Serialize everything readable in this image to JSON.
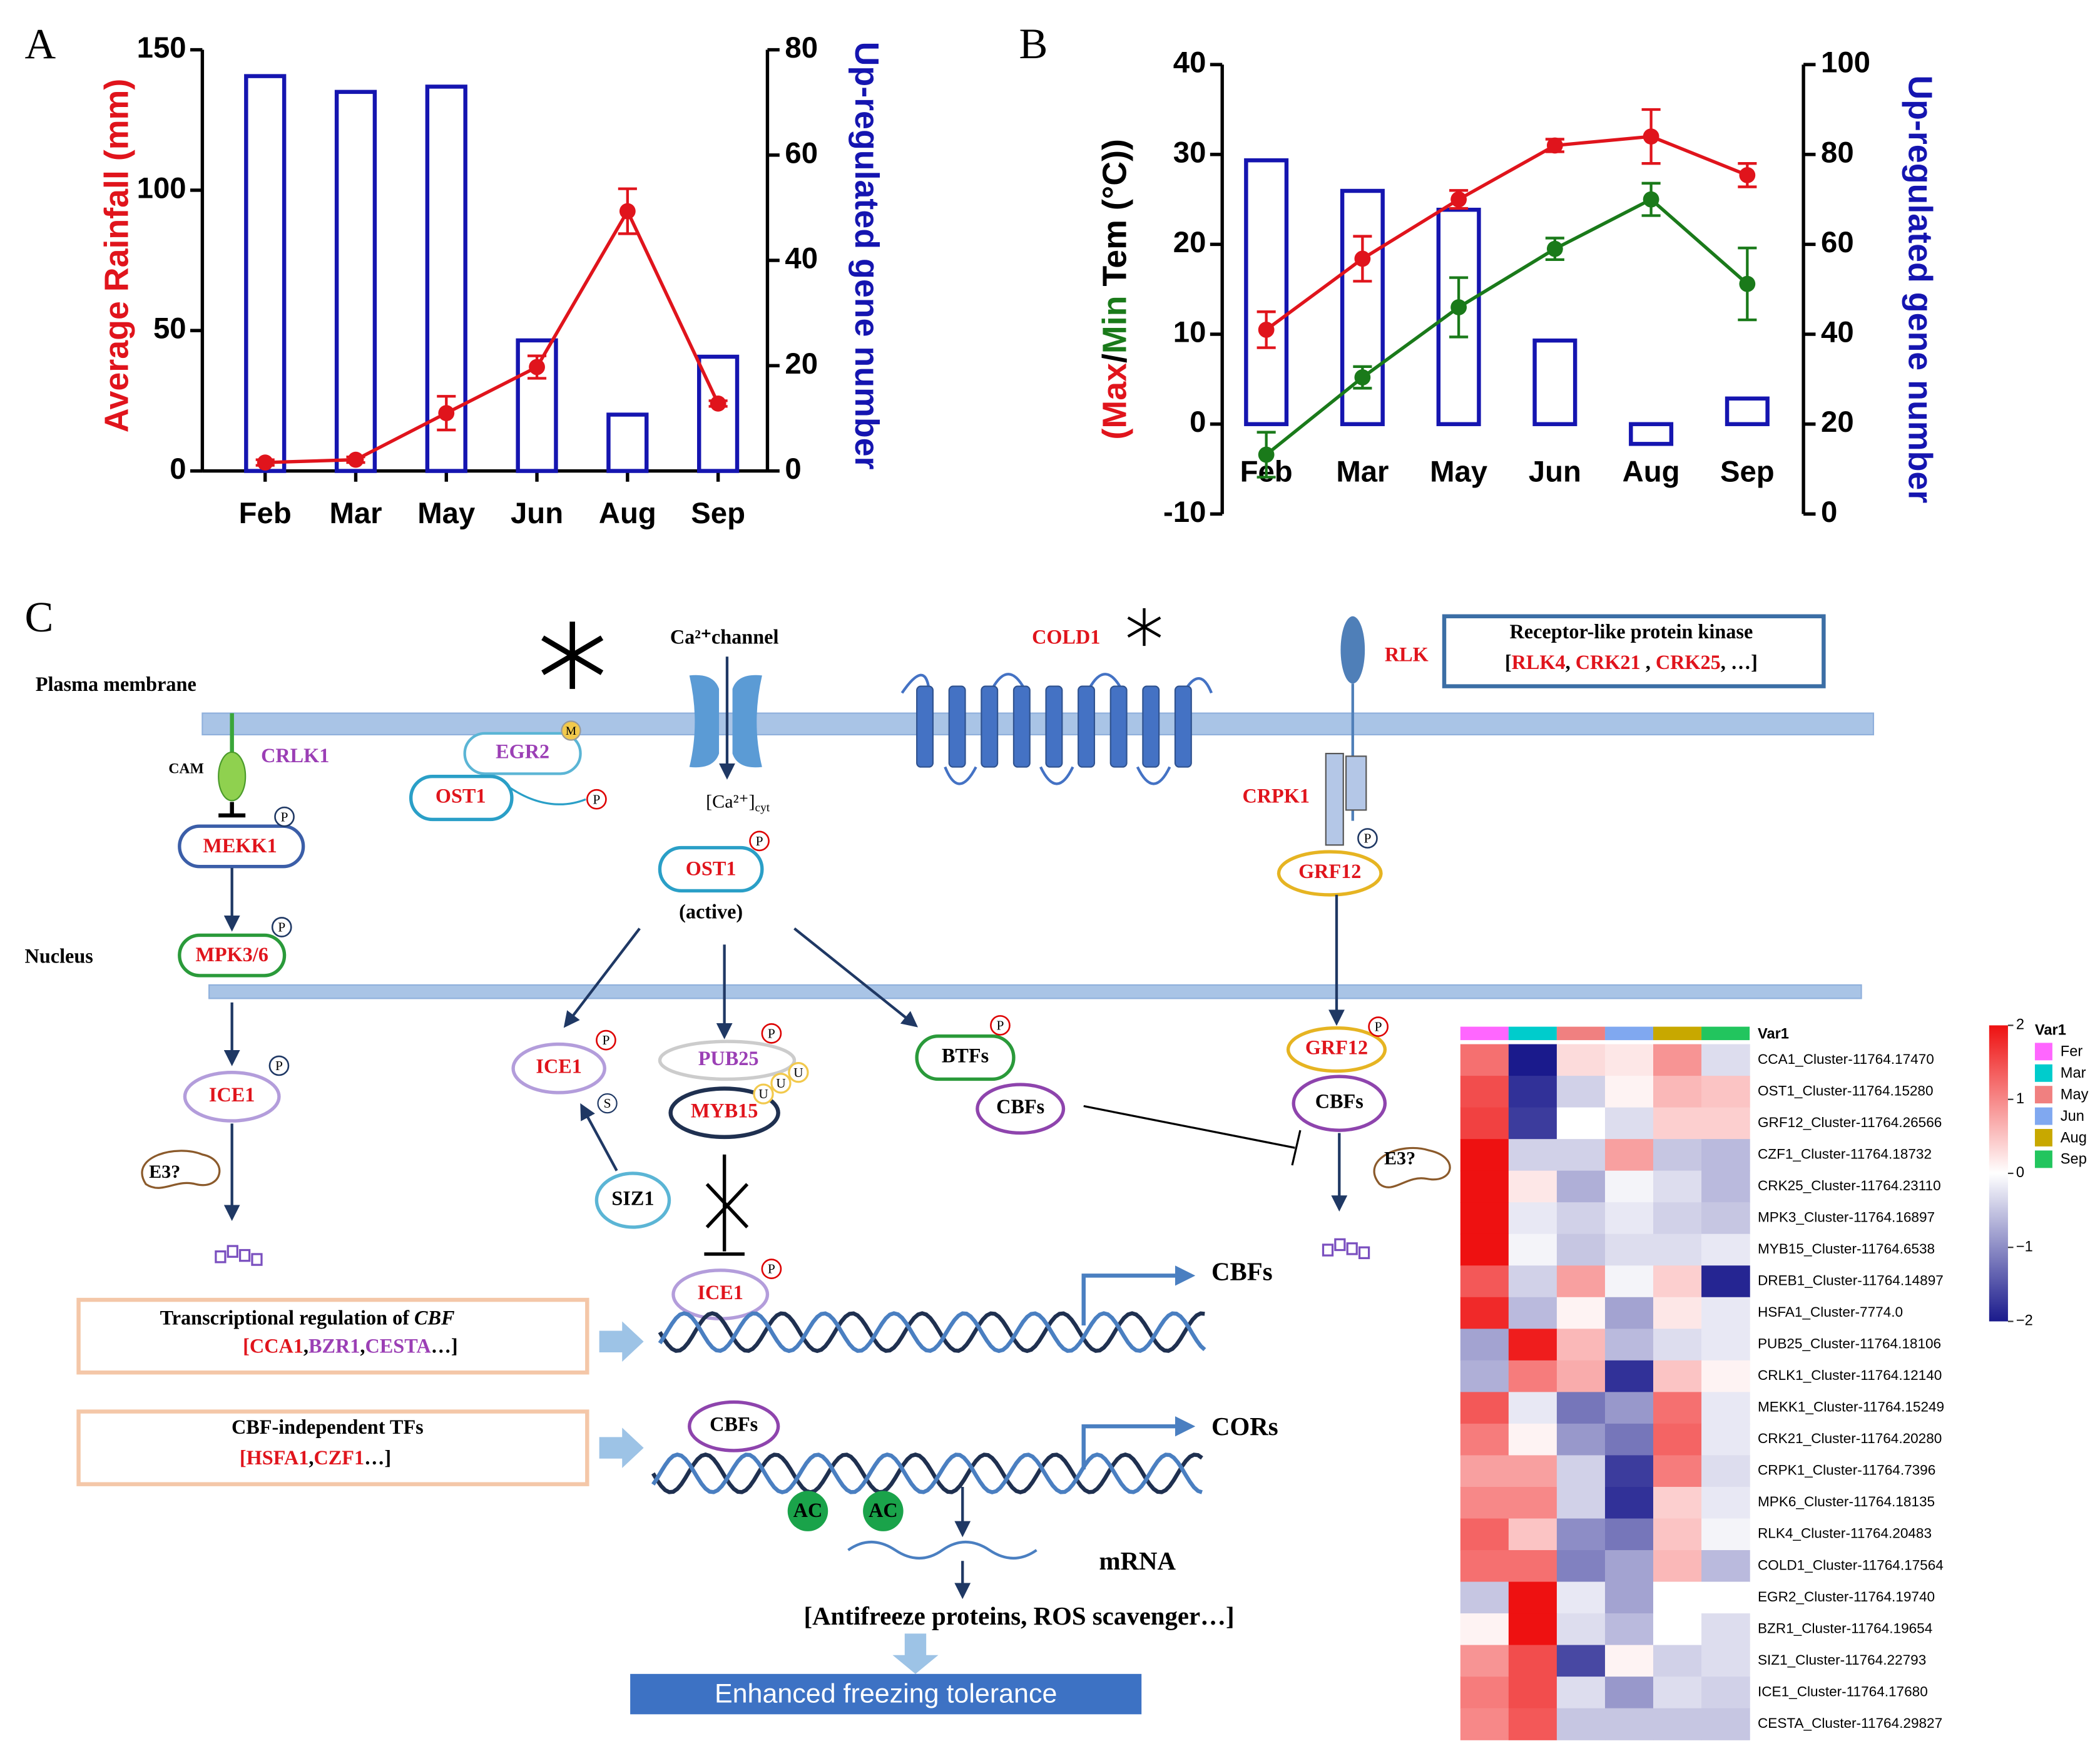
{
  "chart_data": [
    {
      "type": "combo",
      "panel": "A",
      "categories": [
        "Feb",
        "Mar",
        "May",
        "Jun",
        "Aug",
        "Sep"
      ],
      "ylabel": "Average Rainfall (mm)",
      "ylabel_color": "#e0141c",
      "y2label": "Up-regulated gene number",
      "y2label_color": "#1515b0",
      "ylim": [
        0,
        150
      ],
      "yticks": [
        0,
        50,
        100,
        150
      ],
      "y2lim": [
        0,
        80
      ],
      "y2ticks": [
        0,
        20,
        40,
        60,
        80
      ],
      "series": [
        {
          "kind": "bar",
          "axis": "y2",
          "color": "#1515b0",
          "values": [
            75,
            72,
            73,
            24.8,
            10.7,
            21.7
          ]
        },
        {
          "kind": "line",
          "color": "#e0141c",
          "values": [
            3,
            4,
            20.6,
            37,
            92.5,
            24
          ],
          "errors": [
            1,
            1,
            6,
            4,
            8,
            1
          ]
        }
      ]
    },
    {
      "type": "combo",
      "panel": "B",
      "categories": [
        "Feb",
        "Mar",
        "May",
        "Jun",
        "Aug",
        "Sep"
      ],
      "ylabel": [
        {
          "text": "(Max",
          "color": "#e0141c"
        },
        {
          "text": "/",
          "color": "#000000"
        },
        {
          "text": "Min",
          "color": "#1a7a1a"
        },
        {
          "text": " Tem (°C))",
          "color": "#000000"
        }
      ],
      "y2label": "Up-regulated gene number",
      "y2label_color": "#1515b0",
      "ylim": [
        -10,
        40
      ],
      "yticks": [
        -10,
        0,
        10,
        20,
        30,
        40
      ],
      "y2lim": [
        0,
        100
      ],
      "y2ticks": [
        0,
        20,
        40,
        60,
        80,
        100
      ],
      "series": [
        {
          "kind": "bar",
          "axis": "y2",
          "color": "#1515b0",
          "values": [
            78.7,
            71.9,
            67.7,
            38.6,
            15.6,
            25.7
          ]
        },
        {
          "kind": "line",
          "color": "#e0141c",
          "values": [
            10.5,
            18.4,
            25,
            31,
            32,
            27.7
          ],
          "errors": [
            2,
            2.5,
            1,
            0.7,
            3,
            1.3
          ]
        },
        {
          "kind": "line",
          "color": "#1a7a1a",
          "values": [
            -3.4,
            5.2,
            13,
            19.5,
            25,
            15.6
          ],
          "errors": [
            2.5,
            1.2,
            3.3,
            1.2,
            1.8,
            4
          ]
        }
      ]
    },
    {
      "type": "heatmap",
      "annotation_title": "Var1",
      "legend_title": "Var1",
      "columns": [
        "Fer",
        "Mar",
        "May",
        "Jun",
        "Aug",
        "Sep"
      ],
      "column_colors": [
        "#ff66ff",
        "#00cccc",
        "#f08080",
        "#80a8f0",
        "#c8a800",
        "#22c55e"
      ],
      "colors": [
        "#1a1a8c",
        "#ffffff",
        "#ee1111"
      ],
      "zlim": [
        -2,
        2
      ],
      "zticks": [
        2,
        1,
        0,
        {
          "value": -1,
          "label": "−1"
        },
        {
          "value": -2,
          "label": "−2"
        }
      ],
      "rows": [
        "CCA1_Cluster-11764.17470",
        "OST1_Cluster-11764.15280",
        "GRF12_Cluster-11764.26566",
        "CZF1_Cluster-11764.18732",
        "CRK25_Cluster-11764.23110",
        "MPK3_Cluster-11764.16897",
        "MYB15_Cluster-11764.6538",
        "DREB1_Cluster-11764.14897",
        "HSFA1_Cluster-7774.0",
        "PUB25_Cluster-11764.18106",
        "CRLK1_Cluster-11764.12140",
        "MEKK1_Cluster-11764.15249",
        "CRK21_Cluster-11764.20280",
        "CRPK1_Cluster-11764.7396",
        "MPK6_Cluster-11764.18135",
        "RLK4_Cluster-11764.20483",
        "COLD1_Cluster-11764.17564",
        "EGR2_Cluster-11764.19740",
        "BZR1_Cluster-11764.19654",
        "SIZ1_Cluster-11764.22793",
        "ICE1_Cluster-11764.17680",
        "CESTA_Cluster-11764.29827"
      ],
      "values": [
        [
          1.2,
          -2,
          0.3,
          0.2,
          0.9,
          -0.3
        ],
        [
          1.5,
          -1.8,
          -0.4,
          0.1,
          0.6,
          0.5
        ],
        [
          1.6,
          -1.7,
          0,
          -0.3,
          0.4,
          0.4
        ],
        [
          2,
          -0.4,
          -0.4,
          0.8,
          -0.5,
          -0.6
        ],
        [
          2,
          0.2,
          -0.7,
          -0.1,
          -0.3,
          -0.6
        ],
        [
          2,
          -0.2,
          -0.4,
          -0.2,
          -0.4,
          -0.5
        ],
        [
          2,
          -0.1,
          -0.5,
          -0.3,
          -0.3,
          -0.2
        ],
        [
          1.4,
          -0.4,
          0.8,
          -0.1,
          0.4,
          -1.9
        ],
        [
          1.8,
          -0.6,
          0.1,
          -0.8,
          0.2,
          -0.2
        ],
        [
          -0.8,
          1.9,
          0.6,
          -0.6,
          -0.3,
          -0.2
        ],
        [
          -0.7,
          1.1,
          0.7,
          -1.8,
          0.5,
          0.1
        ],
        [
          1.4,
          -0.2,
          -1.2,
          -0.9,
          1.2,
          -0.2
        ],
        [
          1.1,
          0.1,
          -0.9,
          -1.2,
          1.3,
          -0.2
        ],
        [
          0.8,
          0.8,
          -0.4,
          -1.7,
          1.1,
          -0.3
        ],
        [
          1,
          1,
          -0.4,
          -1.8,
          0.4,
          -0.2
        ],
        [
          1.3,
          0.5,
          -1,
          -1.2,
          0.5,
          -0.1
        ],
        [
          1.2,
          1.2,
          -1.1,
          -0.8,
          0.6,
          -0.6
        ],
        [
          -0.5,
          2,
          -0.2,
          -0.8,
          0,
          0
        ],
        [
          0.1,
          2,
          -0.3,
          -0.6,
          0,
          -0.3
        ],
        [
          0.9,
          1.5,
          -1.6,
          0.1,
          -0.4,
          -0.3
        ],
        [
          1.1,
          1.5,
          -0.3,
          -0.9,
          -0.3,
          -0.4
        ],
        [
          1,
          1.4,
          -0.5,
          -0.5,
          -0.5,
          -0.5
        ]
      ]
    }
  ],
  "diagram": {
    "panel": "C",
    "plasma_membrane": "Plasma membrane",
    "nucleus": "Nucleus",
    "cam": "CAM",
    "crlk1": "CRLK1",
    "mekk1": "MEKK1",
    "mpk36": "MPK3/6",
    "ice1": "ICE1",
    "e3": "E3?",
    "egr2": "EGR2",
    "ost1": "OST1",
    "ca_channel": "Ca²⁺channel",
    "ca_cyt": "[Ca²⁺]",
    "cyt": "cyt",
    "cold1": "COLD1",
    "rlk": "RLK",
    "rlk_box_title": "Receptor-like protein kinase",
    "rlk_box_list": [
      "[",
      "RLK4",
      ", ",
      "CRK21",
      " , ",
      "CRK25",
      ", …]"
    ],
    "crpk1": "CRPK1",
    "grf12": "GRF12",
    "active": "(active)",
    "siz1": "SIZ1",
    "pub25": "PUB25",
    "myb15": "MYB15",
    "btfs": "BTFs",
    "cbfs": "CBFs",
    "cors": "CORs",
    "cbf_box_title": [
      "Transcriptional regulation of ",
      "CBF"
    ],
    "cbf_box_list": [
      "[",
      "CCA1",
      ",",
      "BZR1",
      ",",
      "CESTA",
      "…]"
    ],
    "tf_box_title": "CBF-independent TFs",
    "tf_box_list": [
      "[",
      "HSFA1",
      ",",
      "CZF1",
      "…]"
    ],
    "ac": "AC",
    "mrna": "mRNA",
    "products": "[Antifreeze proteins, ROS scavenger…]",
    "outcome": "Enhanced freezing tolerance",
    "p": "P",
    "s": "S",
    "u": "U",
    "m": "M"
  }
}
